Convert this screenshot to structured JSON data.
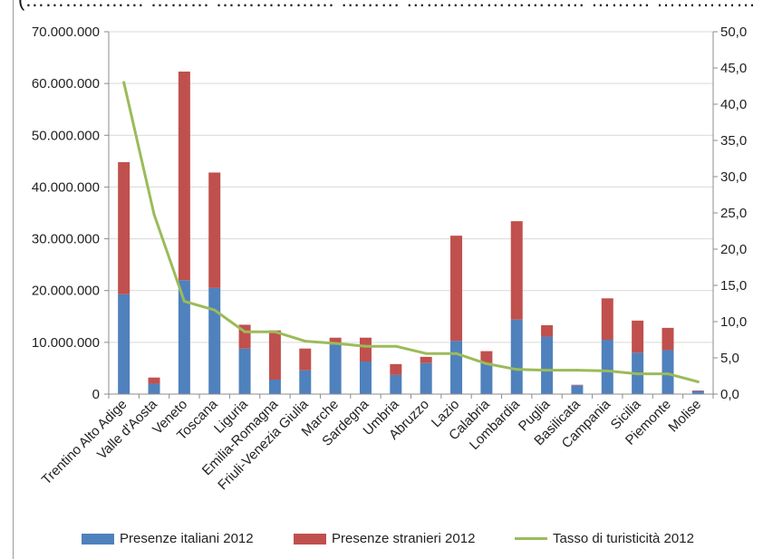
{
  "header": {
    "title": "(……………… ……… ……………… ……… ……………………… ……… ……………"
  },
  "chart_data": {
    "type": "bar",
    "stacked": true,
    "categories": [
      "Trentino Alto Adige",
      "Valle d'Aosta",
      "Veneto",
      "Toscana",
      "Liguria",
      "Emilia-Romagna",
      "Friuli-Venezia Giulia",
      "Marche",
      "Sardegna",
      "Umbria",
      "Abruzzo",
      "Lazio",
      "Calabria",
      "Lombardia",
      "Puglia",
      "Basilicata",
      "Campania",
      "Sicilia",
      "Piemonte",
      "Molise"
    ],
    "series": [
      {
        "name": "Presenze italiani 2012",
        "type": "bar",
        "axis": "left",
        "color": "#4f81bd",
        "values": [
          19300000,
          2000000,
          22000000,
          20500000,
          8800000,
          2800000,
          4600000,
          9600000,
          6300000,
          3700000,
          6000000,
          10300000,
          6000000,
          14400000,
          11100000,
          1700000,
          10500000,
          8000000,
          8500000,
          600000
        ]
      },
      {
        "name": "Presenze stranieri 2012",
        "type": "bar",
        "axis": "left",
        "color": "#c0504d",
        "values": [
          25500000,
          1200000,
          40300000,
          22300000,
          4600000,
          9500000,
          4200000,
          1300000,
          4600000,
          2100000,
          1200000,
          20300000,
          2300000,
          19000000,
          2200000,
          100000,
          8000000,
          6200000,
          4300000,
          100000
        ]
      },
      {
        "name": "Tasso di turisticità 2012",
        "type": "line",
        "axis": "right",
        "color": "#9bbb59",
        "values": [
          43.0,
          24.8,
          12.8,
          11.6,
          8.6,
          8.6,
          7.3,
          7.0,
          6.6,
          6.6,
          5.6,
          5.6,
          4.2,
          3.4,
          3.3,
          3.3,
          3.2,
          2.8,
          2.8,
          1.7
        ]
      }
    ],
    "y_left": {
      "min": 0,
      "max": 70000000,
      "step": 10000000,
      "tick_labels": [
        "0",
        "10.000.000",
        "20.000.000",
        "30.000.000",
        "40.000.000",
        "50.000.000",
        "60.000.000",
        "70.000.000"
      ]
    },
    "y_right": {
      "min": 0,
      "max": 50,
      "step": 5,
      "tick_labels": [
        "0,0",
        "5,0",
        "10,0",
        "15,0",
        "20,0",
        "25,0",
        "30,0",
        "35,0",
        "40,0",
        "45,0",
        "50,0"
      ]
    },
    "grid": true,
    "legend_position": "bottom"
  }
}
